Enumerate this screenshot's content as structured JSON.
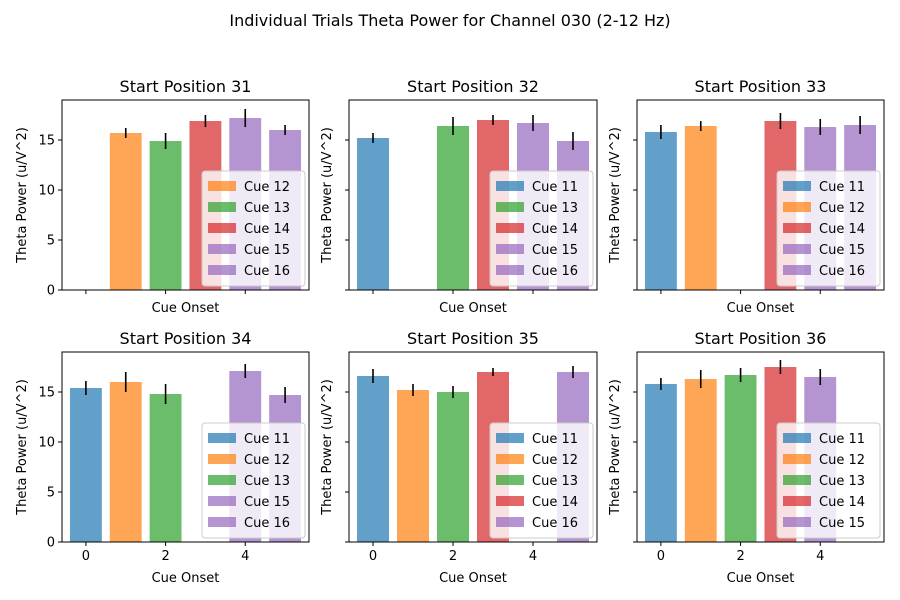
{
  "figure": {
    "suptitle": "Individual Trials Theta Power for Channel 030 (2-12 Hz)"
  },
  "colors": [
    "#1f77b4",
    "#ff7f0e",
    "#2ca02c",
    "#d62728",
    "#9467bd"
  ],
  "chart_data": [
    {
      "type": "bar",
      "title": "Start Position 31",
      "xlabel": "Cue Onset",
      "ylabel": "Theta Power (u/V^2)",
      "xlim": [
        -0.6,
        5.6
      ],
      "ylim": [
        0,
        19
      ],
      "yticks": [
        0,
        5,
        10,
        15
      ],
      "xticks": [
        0,
        2,
        4
      ],
      "show_xticklabels": false,
      "show_yticklabels": true,
      "legend_loc": "lower right",
      "bars": [
        {
          "label": "Cue 12",
          "x": 1,
          "value": 15.7,
          "err": 0.5
        },
        {
          "label": "Cue 13",
          "x": 2,
          "value": 14.9,
          "err": 0.8
        },
        {
          "label": "Cue 14",
          "x": 3,
          "value": 16.9,
          "err": 0.6
        },
        {
          "label": "Cue 15",
          "x": 4,
          "value": 17.2,
          "err": 0.9
        },
        {
          "label": "Cue 16",
          "x": 5,
          "value": 16.0,
          "err": 0.5
        }
      ]
    },
    {
      "type": "bar",
      "title": "Start Position 32",
      "xlabel": "Cue Onset",
      "ylabel": "Theta Power (u/V^2)",
      "xlim": [
        -0.6,
        5.6
      ],
      "ylim": [
        0,
        19
      ],
      "yticks": [
        0,
        5,
        10,
        15
      ],
      "xticks": [
        0,
        2,
        4
      ],
      "show_xticklabels": false,
      "show_yticklabels": false,
      "legend_loc": "lower right",
      "bars": [
        {
          "label": "Cue 11",
          "x": 0,
          "value": 15.2,
          "err": 0.5
        },
        {
          "label": "Cue 13",
          "x": 2,
          "value": 16.4,
          "err": 0.9
        },
        {
          "label": "Cue 14",
          "x": 3,
          "value": 17.0,
          "err": 0.5
        },
        {
          "label": "Cue 15",
          "x": 4,
          "value": 16.7,
          "err": 0.8
        },
        {
          "label": "Cue 16",
          "x": 5,
          "value": 14.9,
          "err": 0.9
        }
      ]
    },
    {
      "type": "bar",
      "title": "Start Position 33",
      "xlabel": "Cue Onset",
      "ylabel": "Theta Power (u/V^2)",
      "xlim": [
        -0.6,
        5.6
      ],
      "ylim": [
        0,
        19
      ],
      "yticks": [
        0,
        5,
        10,
        15
      ],
      "xticks": [
        0,
        2,
        4
      ],
      "show_xticklabels": false,
      "show_yticklabels": false,
      "legend_loc": "lower right",
      "bars": [
        {
          "label": "Cue 11",
          "x": 0,
          "value": 15.8,
          "err": 0.7
        },
        {
          "label": "Cue 12",
          "x": 1,
          "value": 16.4,
          "err": 0.5
        },
        {
          "label": "Cue 14",
          "x": 3,
          "value": 16.9,
          "err": 0.8
        },
        {
          "label": "Cue 15",
          "x": 4,
          "value": 16.3,
          "err": 0.8
        },
        {
          "label": "Cue 16",
          "x": 5,
          "value": 16.5,
          "err": 0.9
        }
      ]
    },
    {
      "type": "bar",
      "title": "Start Position 34",
      "xlabel": "Cue Onset",
      "ylabel": "Theta Power (u/V^2)",
      "xlim": [
        -0.6,
        5.6
      ],
      "ylim": [
        0,
        19
      ],
      "yticks": [
        0,
        5,
        10,
        15
      ],
      "xticks": [
        0,
        2,
        4
      ],
      "show_xticklabels": true,
      "show_yticklabels": true,
      "legend_loc": "lower right",
      "bars": [
        {
          "label": "Cue 11",
          "x": 0,
          "value": 15.4,
          "err": 0.7
        },
        {
          "label": "Cue 12",
          "x": 1,
          "value": 16.0,
          "err": 1.0
        },
        {
          "label": "Cue 13",
          "x": 2,
          "value": 14.8,
          "err": 1.0
        },
        {
          "label": "Cue 15",
          "x": 4,
          "value": 17.1,
          "err": 0.7
        },
        {
          "label": "Cue 16",
          "x": 5,
          "value": 14.7,
          "err": 0.8
        }
      ]
    },
    {
      "type": "bar",
      "title": "Start Position 35",
      "xlabel": "Cue Onset",
      "ylabel": "Theta Power (u/V^2)",
      "xlim": [
        -0.6,
        5.6
      ],
      "ylim": [
        0,
        19
      ],
      "yticks": [
        0,
        5,
        10,
        15
      ],
      "xticks": [
        0,
        2,
        4
      ],
      "show_xticklabels": true,
      "show_yticklabels": false,
      "legend_loc": "lower right",
      "bars": [
        {
          "label": "Cue 11",
          "x": 0,
          "value": 16.6,
          "err": 0.7
        },
        {
          "label": "Cue 12",
          "x": 1,
          "value": 15.2,
          "err": 0.6
        },
        {
          "label": "Cue 13",
          "x": 2,
          "value": 15.0,
          "err": 0.6
        },
        {
          "label": "Cue 14",
          "x": 3,
          "value": 17.0,
          "err": 0.4
        },
        {
          "label": "Cue 16",
          "x": 5,
          "value": 17.0,
          "err": 0.6
        }
      ]
    },
    {
      "type": "bar",
      "title": "Start Position 36",
      "xlabel": "Cue Onset",
      "ylabel": "Theta Power (u/V^2)",
      "xlim": [
        -0.6,
        5.6
      ],
      "ylim": [
        0,
        19
      ],
      "yticks": [
        0,
        5,
        10,
        15
      ],
      "xticks": [
        0,
        2,
        4
      ],
      "show_xticklabels": true,
      "show_yticklabels": false,
      "legend_loc": "lower right",
      "bars": [
        {
          "label": "Cue 11",
          "x": 0,
          "value": 15.8,
          "err": 0.6
        },
        {
          "label": "Cue 12",
          "x": 1,
          "value": 16.3,
          "err": 0.9
        },
        {
          "label": "Cue 13",
          "x": 2,
          "value": 16.7,
          "err": 0.7
        },
        {
          "label": "Cue 14",
          "x": 3,
          "value": 17.5,
          "err": 0.7
        },
        {
          "label": "Cue 15",
          "x": 4,
          "value": 16.5,
          "err": 0.8
        }
      ]
    }
  ]
}
